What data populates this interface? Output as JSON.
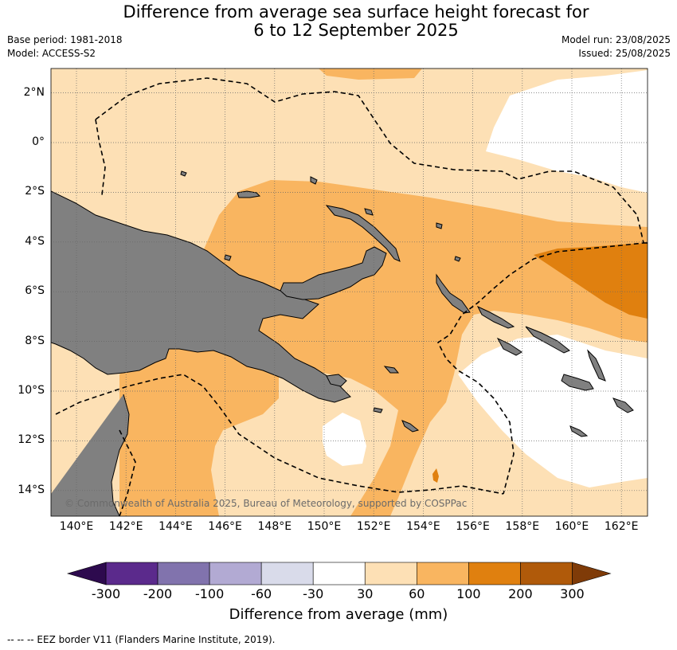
{
  "title": {
    "line1": "Difference from average sea surface height forecast for",
    "line2": "6 to 12 September 2025"
  },
  "meta": {
    "base_period": "Base period: 1981-2018",
    "model": "Model: ACCESS-S2",
    "model_run": "Model run: 23/08/2025",
    "issued": "Issued: 25/08/2025"
  },
  "map": {
    "lat_labels": [
      "2°N",
      "0°",
      "2°S",
      "4°S",
      "6°S",
      "8°S",
      "10°S",
      "12°S",
      "14°S"
    ],
    "lon_labels": [
      "140°E",
      "142°E",
      "144°E",
      "146°E",
      "148°E",
      "150°E",
      "152°E",
      "154°E",
      "156°E",
      "158°E",
      "160°E",
      "162°E"
    ],
    "copyright": "© Commonwealth of Australia 2025, Bureau of Meteorology, supported by COSPPac",
    "colors": {
      "land": "#808080",
      "band_30_60": "#fde0b5",
      "band_60_100": "#f9b560",
      "band_100_200": "#e0800f",
      "neutral": "#ffffff"
    }
  },
  "colorbar": {
    "tick_labels": [
      "-300",
      "-200",
      "-100",
      "-60",
      "-30",
      "30",
      "60",
      "100",
      "200",
      "300"
    ],
    "colors": [
      "#2d0a4e",
      "#5b2a8c",
      "#8173ad",
      "#b2aad3",
      "#d9dbea",
      "#ffffff",
      "#fde0b5",
      "#f9b560",
      "#e0800f",
      "#b05a0a",
      "#7f3b08"
    ],
    "title": "Difference from average (mm)"
  },
  "footer": {
    "legend": "--  --  -- EEZ border V11 (Flanders Marine Institute, 2019)."
  }
}
